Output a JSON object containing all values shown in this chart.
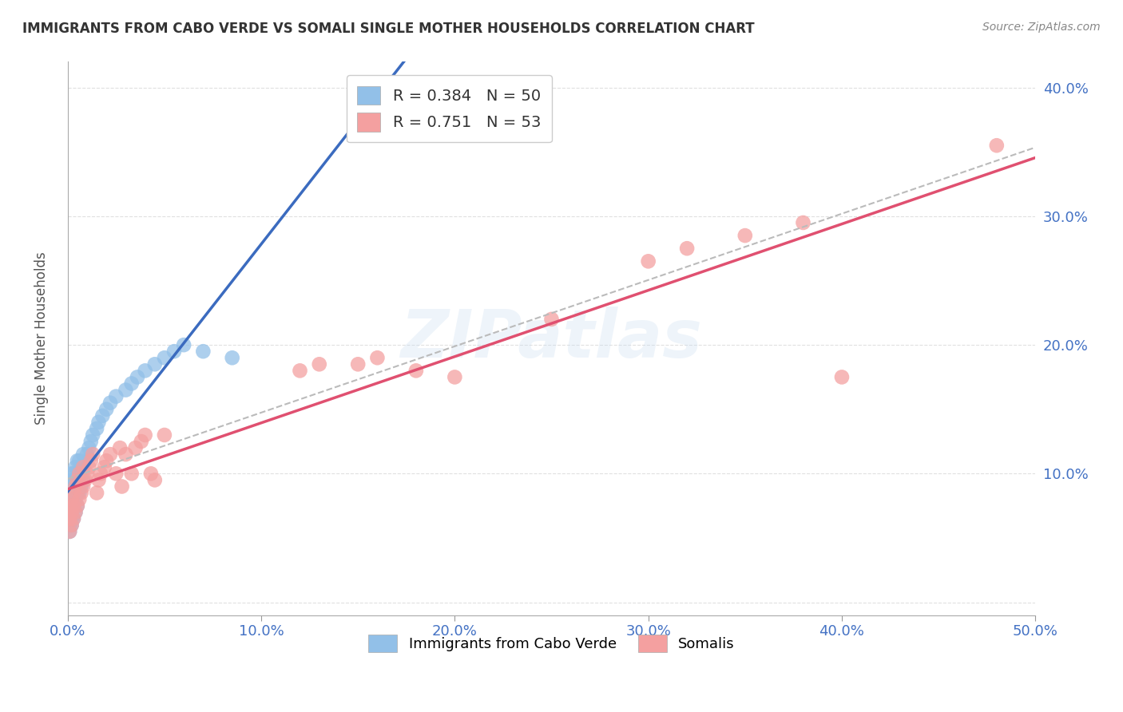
{
  "title": "IMMIGRANTS FROM CABO VERDE VS SOMALI SINGLE MOTHER HOUSEHOLDS CORRELATION CHART",
  "source": "Source: ZipAtlas.com",
  "tick_color": "#4472C4",
  "ylabel": "Single Mother Households",
  "xlim": [
    0.0,
    0.5
  ],
  "ylim": [
    -0.01,
    0.42
  ],
  "x_ticks": [
    0.0,
    0.1,
    0.2,
    0.3,
    0.4,
    0.5
  ],
  "y_ticks": [
    0.0,
    0.1,
    0.2,
    0.3,
    0.4
  ],
  "cabo_verde_color": "#92C0E8",
  "somali_color": "#F4A0A0",
  "cabo_verde_line_color": "#3B6BBF",
  "somali_line_color": "#E05070",
  "dashed_line_color": "#BBBBBB",
  "cabo_verde_R": 0.384,
  "cabo_verde_N": 50,
  "somali_R": 0.751,
  "somali_N": 53,
  "background_color": "#FFFFFF",
  "grid_color": "#DDDDDD",
  "watermark": "ZIPatlas",
  "cabo_verde_x": [
    0.001,
    0.001,
    0.001,
    0.001,
    0.002,
    0.002,
    0.002,
    0.002,
    0.002,
    0.003,
    0.003,
    0.003,
    0.003,
    0.003,
    0.004,
    0.004,
    0.004,
    0.004,
    0.005,
    0.005,
    0.005,
    0.005,
    0.006,
    0.006,
    0.006,
    0.007,
    0.007,
    0.008,
    0.008,
    0.009,
    0.01,
    0.011,
    0.012,
    0.013,
    0.015,
    0.016,
    0.018,
    0.02,
    0.022,
    0.025,
    0.03,
    0.033,
    0.036,
    0.04,
    0.045,
    0.05,
    0.055,
    0.06,
    0.07,
    0.085
  ],
  "cabo_verde_y": [
    0.055,
    0.06,
    0.07,
    0.08,
    0.06,
    0.065,
    0.08,
    0.09,
    0.1,
    0.065,
    0.075,
    0.085,
    0.095,
    0.1,
    0.07,
    0.08,
    0.09,
    0.105,
    0.075,
    0.085,
    0.095,
    0.11,
    0.085,
    0.095,
    0.11,
    0.09,
    0.105,
    0.095,
    0.115,
    0.11,
    0.115,
    0.12,
    0.125,
    0.13,
    0.135,
    0.14,
    0.145,
    0.15,
    0.155,
    0.16,
    0.165,
    0.17,
    0.175,
    0.18,
    0.185,
    0.19,
    0.195,
    0.2,
    0.195,
    0.19
  ],
  "somali_x": [
    0.001,
    0.001,
    0.001,
    0.002,
    0.002,
    0.002,
    0.003,
    0.003,
    0.003,
    0.004,
    0.004,
    0.005,
    0.005,
    0.006,
    0.006,
    0.007,
    0.008,
    0.008,
    0.009,
    0.01,
    0.011,
    0.012,
    0.013,
    0.015,
    0.016,
    0.017,
    0.019,
    0.02,
    0.022,
    0.025,
    0.027,
    0.028,
    0.03,
    0.033,
    0.035,
    0.038,
    0.04,
    0.043,
    0.045,
    0.05,
    0.12,
    0.13,
    0.15,
    0.16,
    0.18,
    0.2,
    0.25,
    0.3,
    0.32,
    0.35,
    0.38,
    0.4,
    0.48
  ],
  "somali_y": [
    0.055,
    0.065,
    0.075,
    0.06,
    0.07,
    0.08,
    0.065,
    0.075,
    0.085,
    0.07,
    0.09,
    0.075,
    0.095,
    0.08,
    0.1,
    0.085,
    0.09,
    0.105,
    0.095,
    0.1,
    0.105,
    0.11,
    0.115,
    0.085,
    0.095,
    0.1,
    0.105,
    0.11,
    0.115,
    0.1,
    0.12,
    0.09,
    0.115,
    0.1,
    0.12,
    0.125,
    0.13,
    0.1,
    0.095,
    0.13,
    0.18,
    0.185,
    0.185,
    0.19,
    0.18,
    0.175,
    0.22,
    0.265,
    0.275,
    0.285,
    0.295,
    0.175,
    0.355
  ]
}
